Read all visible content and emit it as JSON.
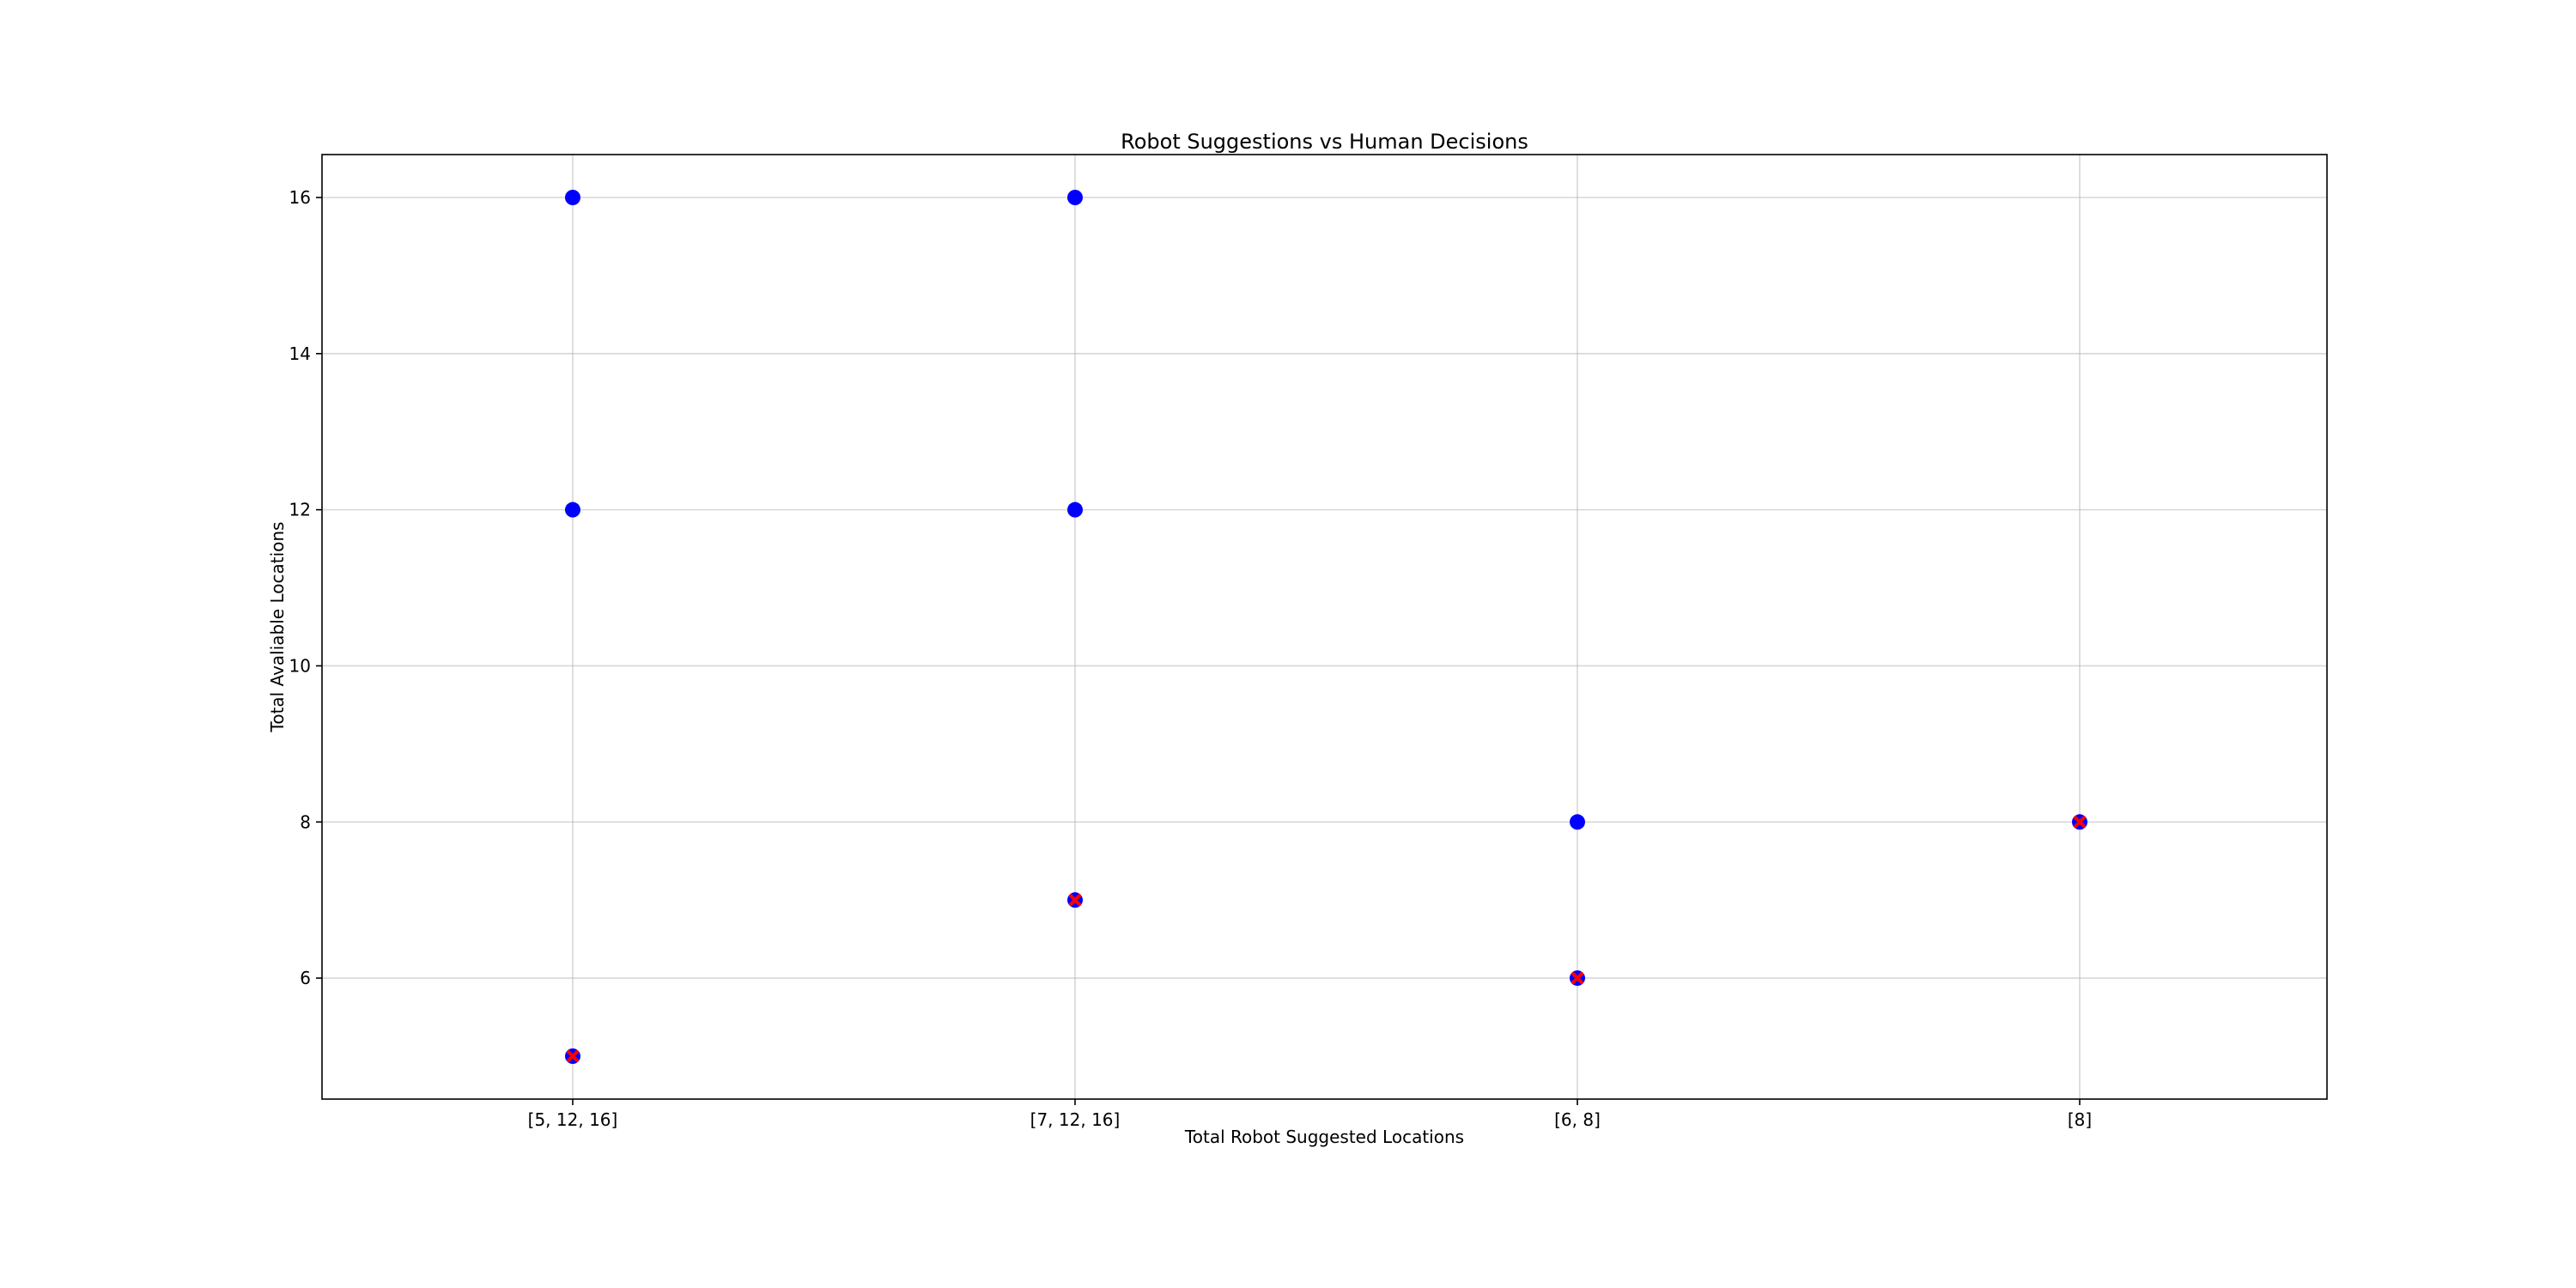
{
  "chart_data": {
    "type": "scatter",
    "title": "Robot Suggestions vs Human Decisions",
    "xlabel": "Total Robot Suggested Locations",
    "ylabel": "Total Avaliable Locations",
    "categories": [
      "[5, 12, 16]",
      "[7, 12, 16]",
      "[6, 8]",
      "[8]"
    ],
    "ylim": [
      4.45,
      16.55
    ],
    "yticks": [
      6,
      8,
      10,
      12,
      14,
      16
    ],
    "grid": true,
    "legend": "none",
    "series": [
      {
        "color": "#0000ff",
        "points": [
          {
            "x": "[5, 12, 16]",
            "y": 5
          },
          {
            "x": "[5, 12, 16]",
            "y": 12
          },
          {
            "x": "[5, 12, 16]",
            "y": 16
          },
          {
            "x": "[7, 12, 16]",
            "y": 7
          },
          {
            "x": "[7, 12, 16]",
            "y": 12
          },
          {
            "x": "[7, 12, 16]",
            "y": 16
          },
          {
            "x": "[6, 8]",
            "y": 6
          },
          {
            "x": "[6, 8]",
            "y": 8
          },
          {
            "x": "[8]",
            "y": 8
          }
        ]
      },
      {
        "color": "#ff0000",
        "marker": "x",
        "points": [
          {
            "x": "[5, 12, 16]",
            "y": 5
          },
          {
            "x": "[7, 12, 16]",
            "y": 7
          },
          {
            "x": "[6, 8]",
            "y": 6
          },
          {
            "x": "[8]",
            "y": 8
          }
        ]
      }
    ]
  }
}
